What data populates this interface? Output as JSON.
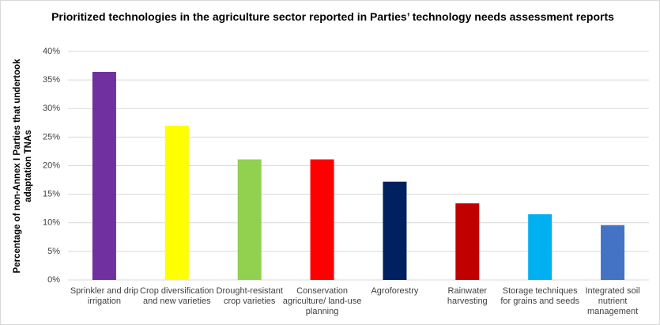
{
  "chart_data": {
    "type": "bar",
    "title": "Prioritized technologies in the agriculture sector reported in Parties’ technology needs assessment reports",
    "ylabel": "Percentage of non-Annex I Parties that undertook adaptation TNAs",
    "categories": [
      "Sprinkler and drip irrigation",
      "Crop diversification and new varieties",
      "Drought-resistant crop varieties",
      "Conservation agriculture/ land-use planning",
      "Agroforestry",
      "Rainwater harvesting",
      "Storage techniques for grains and seeds",
      "Integrated soil nutrient management"
    ],
    "values": [
      36.4,
      27,
      21.1,
      21.1,
      17.2,
      13.4,
      11.5,
      9.6
    ],
    "colors": [
      "#7030a0",
      "#ffff00",
      "#92d050",
      "#ff0000",
      "#002060",
      "#c00000",
      "#00b0f0",
      "#4472c4"
    ],
    "ylim": [
      0,
      40
    ],
    "yticks": [
      {
        "value": 0,
        "label": "0%"
      },
      {
        "value": 5,
        "label": "5%"
      },
      {
        "value": 10,
        "label": "10%"
      },
      {
        "value": 15,
        "label": "15%"
      },
      {
        "value": 20,
        "label": "20%"
      },
      {
        "value": 25,
        "label": "25%"
      },
      {
        "value": 30,
        "label": "30%"
      },
      {
        "value": 35,
        "label": "35%"
      },
      {
        "value": 40,
        "label": "40%"
      }
    ],
    "grid": true
  }
}
